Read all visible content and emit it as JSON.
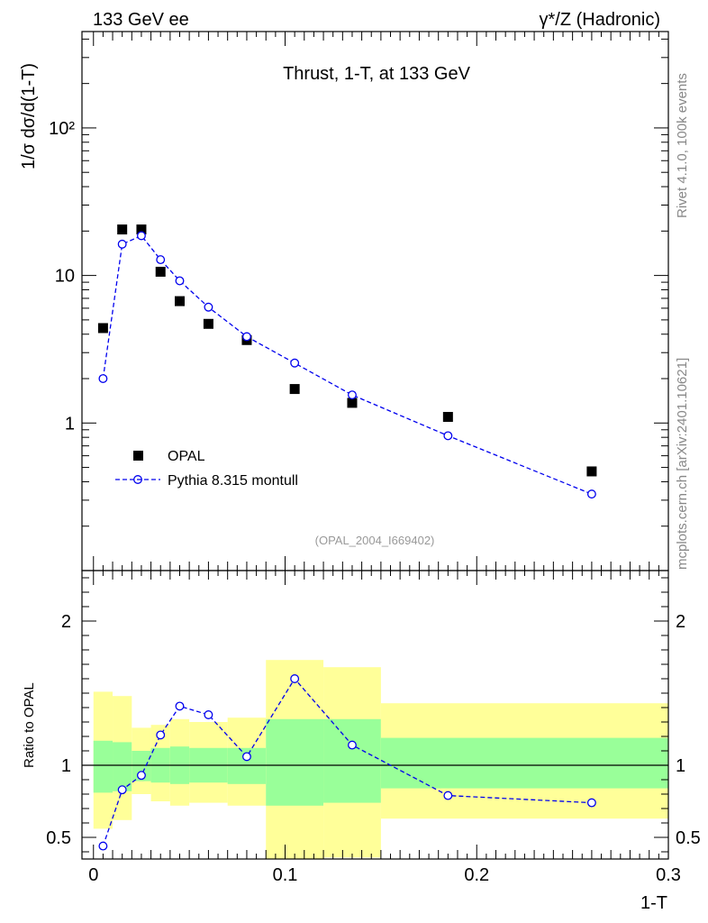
{
  "header": {
    "left": "133 GeV ee",
    "right": "γ*/Z (Hadronic)"
  },
  "side": {
    "top": "Rivet 4.1.0,  100k events",
    "bottom": "mcplots.cern.ch [arXiv:2401.10621]"
  },
  "colors": {
    "data": "#000000",
    "mc": "#0000ee",
    "band_outer": "#ffff99",
    "band_inner": "#99ff99",
    "tag": "#999999"
  },
  "chart_data": [
    {
      "type": "scatter",
      "title": "Thrust, 1-T, at 133 GeV",
      "ylabel": "1/σ  dσ/d(1-T)",
      "xlabel": "1-T",
      "yscale": "log",
      "xlim": [
        -0.006,
        0.3
      ],
      "ylim": [
        0.1,
        450
      ],
      "ytick_labels": [
        {
          "value": 1,
          "label": "1"
        },
        {
          "value": 10,
          "label": "10"
        },
        {
          "value": 100,
          "label": "10²"
        }
      ],
      "tag": "(OPAL_2004_I669402)",
      "series": [
        {
          "name": "OPAL",
          "style": "square",
          "x": [
            0.005,
            0.015,
            0.025,
            0.035,
            0.045,
            0.06,
            0.08,
            0.105,
            0.135,
            0.185,
            0.26
          ],
          "values": [
            4.4,
            20.5,
            20.5,
            10.6,
            6.7,
            4.7,
            3.65,
            1.7,
            1.37,
            1.1,
            0.47
          ]
        },
        {
          "name": "Pythia 8.315 montull",
          "style": "circle-dashed",
          "x": [
            0.005,
            0.015,
            0.025,
            0.035,
            0.045,
            0.06,
            0.08,
            0.105,
            0.135,
            0.185,
            0.26
          ],
          "values": [
            2.0,
            16.3,
            18.6,
            12.8,
            9.2,
            6.1,
            3.85,
            2.55,
            1.55,
            0.82,
            0.33
          ]
        }
      ]
    },
    {
      "type": "line",
      "ylabel": "Ratio to OPAL",
      "xlabel": "1-T",
      "ylim": [
        0.35,
        2.35
      ],
      "ytick_labels": [
        {
          "value": 0.5,
          "label": "0.5"
        },
        {
          "value": 1,
          "label": "1"
        },
        {
          "value": 2,
          "label": "2"
        }
      ],
      "xtick_labels": [
        {
          "value": 0,
          "label": "0"
        },
        {
          "value": 0.1,
          "label": "0.1"
        },
        {
          "value": 0.2,
          "label": "0.2"
        },
        {
          "value": 0.3,
          "label": "0.3"
        }
      ],
      "reference_line": 1,
      "bands": [
        {
          "x0": 0.0,
          "x1": 0.01,
          "outer": [
            0.56,
            1.51
          ],
          "inner": [
            0.81,
            1.17
          ]
        },
        {
          "x0": 0.01,
          "x1": 0.02,
          "outer": [
            0.62,
            1.48
          ],
          "inner": [
            0.82,
            1.16
          ]
        },
        {
          "x0": 0.02,
          "x1": 0.03,
          "outer": [
            0.8,
            1.26
          ],
          "inner": [
            0.89,
            1.1
          ]
        },
        {
          "x0": 0.03,
          "x1": 0.04,
          "outer": [
            0.75,
            1.28
          ],
          "inner": [
            0.88,
            1.12
          ]
        },
        {
          "x0": 0.04,
          "x1": 0.05,
          "outer": [
            0.72,
            1.32
          ],
          "inner": [
            0.87,
            1.13
          ]
        },
        {
          "x0": 0.05,
          "x1": 0.07,
          "outer": [
            0.74,
            1.3
          ],
          "inner": [
            0.88,
            1.12
          ]
        },
        {
          "x0": 0.07,
          "x1": 0.09,
          "outer": [
            0.72,
            1.33
          ],
          "inner": [
            0.87,
            1.12
          ]
        },
        {
          "x0": 0.09,
          "x1": 0.12,
          "outer": [
            0.32,
            1.73
          ],
          "inner": [
            0.72,
            1.32
          ]
        },
        {
          "x0": 0.12,
          "x1": 0.15,
          "outer": [
            0.36,
            1.68
          ],
          "inner": [
            0.74,
            1.32
          ]
        },
        {
          "x0": 0.15,
          "x1": 0.3,
          "outer": [
            0.63,
            1.43
          ],
          "inner": [
            0.84,
            1.19
          ]
        }
      ],
      "series": [
        {
          "name": "Pythia 8.315 montull / OPAL",
          "x": [
            0.005,
            0.015,
            0.025,
            0.035,
            0.045,
            0.06,
            0.08,
            0.105,
            0.135,
            0.185,
            0.26
          ],
          "values": [
            0.44,
            0.83,
            0.93,
            1.21,
            1.41,
            1.35,
            1.06,
            1.6,
            1.14,
            0.79,
            0.74
          ]
        }
      ]
    }
  ]
}
